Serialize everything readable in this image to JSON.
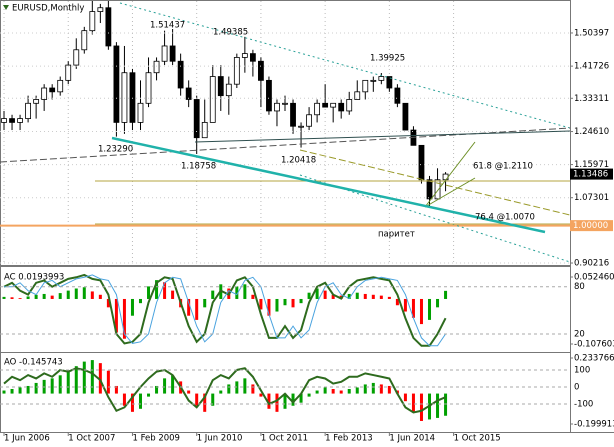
{
  "chart_data": [
    {
      "type": "candlestick",
      "title": "EURUSD,Monthly",
      "x": [
        "2006-05-01",
        "2006-07-01",
        "2006-09-01",
        "2006-11-01",
        "2007-01-01",
        "2007-03-01",
        "2007-05-01",
        "2007-07-01",
        "2007-09-01",
        "2007-11-01",
        "2008-01-01",
        "2008-03-01",
        "2008-05-01",
        "2008-07-01",
        "2008-09-01",
        "2008-11-01",
        "2009-01-01",
        "2009-03-01",
        "2009-05-01",
        "2009-07-01",
        "2009-09-01",
        "2009-11-01",
        "2010-01-01",
        "2010-03-01",
        "2010-05-01",
        "2010-07-01",
        "2010-09-01",
        "2010-11-01",
        "2011-01-01",
        "2011-03-01",
        "2011-05-01",
        "2011-07-01",
        "2011-09-01",
        "2011-11-01",
        "2012-01-01",
        "2012-03-01",
        "2012-05-01",
        "2012-07-01",
        "2012-09-01",
        "2012-11-01",
        "2013-01-01",
        "2013-03-01",
        "2013-05-01",
        "2013-07-01",
        "2013-09-01",
        "2013-11-01",
        "2014-01-01",
        "2014-03-01",
        "2014-05-01",
        "2014-07-01",
        "2014-09-01",
        "2014-11-01",
        "2015-01-01",
        "2015-03-01",
        "2015-05-01",
        "2015-07-01"
      ],
      "open": [
        1.27,
        1.28,
        1.27,
        1.28,
        1.32,
        1.33,
        1.36,
        1.35,
        1.38,
        1.42,
        1.46,
        1.51,
        1.56,
        1.57,
        1.47,
        1.27,
        1.4,
        1.27,
        1.32,
        1.4,
        1.43,
        1.47,
        1.43,
        1.36,
        1.33,
        1.23,
        1.27,
        1.39,
        1.34,
        1.37,
        1.44,
        1.45,
        1.43,
        1.38,
        1.3,
        1.32,
        1.32,
        1.26,
        1.26,
        1.29,
        1.32,
        1.31,
        1.32,
        1.3,
        1.33,
        1.35,
        1.38,
        1.38,
        1.39,
        1.36,
        1.32,
        1.25,
        1.21,
        1.12,
        1.07,
        1.12
      ],
      "high": [
        1.3,
        1.29,
        1.29,
        1.34,
        1.34,
        1.37,
        1.37,
        1.39,
        1.43,
        1.49,
        1.52,
        1.6,
        1.58,
        1.6,
        1.48,
        1.47,
        1.41,
        1.38,
        1.44,
        1.44,
        1.51,
        1.51437,
        1.45,
        1.38,
        1.34,
        1.33,
        1.42,
        1.42,
        1.39,
        1.45,
        1.49385,
        1.46,
        1.44,
        1.39,
        1.33,
        1.34,
        1.33,
        1.27,
        1.31,
        1.33,
        1.37,
        1.32,
        1.33,
        1.35,
        1.38,
        1.38,
        1.39,
        1.39925,
        1.39,
        1.37,
        1.32,
        1.26,
        1.21,
        1.13,
        1.15,
        1.14
      ],
      "low": [
        1.25,
        1.25,
        1.25,
        1.27,
        1.28,
        1.3,
        1.33,
        1.34,
        1.37,
        1.41,
        1.45,
        1.5,
        1.53,
        1.46,
        1.2329,
        1.24,
        1.25,
        1.25,
        1.31,
        1.38,
        1.42,
        1.42,
        1.34,
        1.31,
        1.18758,
        1.23,
        1.27,
        1.3,
        1.29,
        1.36,
        1.4,
        1.39,
        1.31,
        1.29,
        1.26,
        1.3,
        1.24,
        1.20418,
        1.25,
        1.27,
        1.31,
        1.27,
        1.28,
        1.29,
        1.33,
        1.33,
        1.35,
        1.37,
        1.35,
        1.31,
        1.25,
        1.21,
        1.11,
        1.05,
        1.07,
        1.09
      ],
      "close": [
        1.28,
        1.27,
        1.28,
        1.32,
        1.33,
        1.36,
        1.35,
        1.38,
        1.42,
        1.46,
        1.51,
        1.56,
        1.57,
        1.47,
        1.27,
        1.4,
        1.27,
        1.32,
        1.4,
        1.43,
        1.47,
        1.43,
        1.36,
        1.33,
        1.23,
        1.27,
        1.39,
        1.34,
        1.37,
        1.44,
        1.45,
        1.43,
        1.38,
        1.3,
        1.32,
        1.32,
        1.26,
        1.26,
        1.29,
        1.32,
        1.31,
        1.32,
        1.3,
        1.33,
        1.35,
        1.38,
        1.38,
        1.39,
        1.36,
        1.32,
        1.25,
        1.21,
        1.12,
        1.07,
        1.12,
        1.13486
      ],
      "up_color": "#ffffff",
      "down_color": "#000000",
      "xlim": [
        "2006-05-01",
        "2018-03-01"
      ],
      "xticks": [
        {
          "value": "2006-06-01",
          "label": "1 Jun 2006"
        },
        {
          "value": "2007-10-01",
          "label": "1 Oct 2007"
        },
        {
          "value": "2009-02-01",
          "label": "1 Feb 2009"
        },
        {
          "value": "2010-06-01",
          "label": "1 Jun 2010"
        },
        {
          "value": "2011-10-01",
          "label": "1 Oct 2011"
        },
        {
          "value": "2013-02-01",
          "label": "1 Feb 2013"
        },
        {
          "value": "2014-06-01",
          "label": "1 Jun 2014"
        },
        {
          "value": "2015-10-01",
          "label": "1 Oct 2015"
        }
      ],
      "ylim": [
        0.897,
        1.585
      ],
      "yticks": [
        1.50397,
        1.41726,
        1.33311,
        {
          "value": 1.2461,
          "label": "1.24610"
        },
        1.15971,
        1.07301,
        0.90216
      ],
      "grid": true,
      "price_lines": [
        {
          "value": 1,
          "label": "1.00000",
          "color": "#f4a460"
        }
      ],
      "last_price": 1.13486,
      "annotations": [
        "1.23290",
        "1.51437",
        "1.18758",
        "1.49385",
        "1.20418",
        "1.39925",
        "паритет",
        "61.8 @1.2110",
        "76.4 @1.0070"
      ]
    },
    {
      "type": "bar",
      "title": "AC 0.0193993",
      "values": [
        0.005,
        0.004,
        0.002,
        0.006,
        0.01,
        0.012,
        0.008,
        0.014,
        0.02,
        0.025,
        0.028,
        0.018,
        0.01,
        -0.02,
        -0.08,
        -0.095,
        -0.04,
        -0.01,
        0.03,
        0.045,
        0.04,
        0.02,
        -0.02,
        -0.04,
        -0.05,
        -0.02,
        0.02,
        0.035,
        0.025,
        0.03,
        0.035,
        0.01,
        -0.025,
        -0.04,
        -0.03,
        -0.015,
        -0.02,
        -0.01,
        0.015,
        0.025,
        0.02,
        0.01,
        0.008,
        0.012,
        0.015,
        0.012,
        0.01,
        0.008,
        0.005,
        -0.015,
        -0.03,
        -0.045,
        -0.06,
        -0.05,
        -0.02,
        0.0193993
      ],
      "up_color": "#00a000",
      "down_color": "#ff0000",
      "ylim": [
        -0.1267,
        0.074
      ],
      "yticks": [
        {
          "value": 0.05246,
          "label": "0.052460"
        },
        -0.107603
      ],
      "y2lim": [
        -2.9,
        103.8
      ],
      "y2ticks": [
        80,
        20
      ],
      "grid": true,
      "series": [
        {
          "color": "#2e6b1e",
          "values": [
            80,
            85,
            75,
            70,
            85,
            88,
            80,
            85,
            90,
            92,
            95,
            90,
            88,
            70,
            20,
            8,
            10,
            20,
            60,
            85,
            92,
            90,
            60,
            30,
            10,
            20,
            60,
            75,
            70,
            88,
            92,
            80,
            45,
            15,
            15,
            30,
            15,
            25,
            60,
            80,
            85,
            70,
            65,
            80,
            88,
            90,
            92,
            90,
            88,
            70,
            40,
            15,
            5,
            5,
            20,
            40
          ],
          "axis": "y2"
        },
        {
          "color": "#4aa3df",
          "values": [
            80,
            80,
            85,
            75,
            70,
            85,
            88,
            80,
            85,
            90,
            92,
            95,
            90,
            88,
            70,
            20,
            8,
            10,
            20,
            60,
            85,
            92,
            90,
            60,
            30,
            10,
            20,
            60,
            75,
            70,
            88,
            92,
            80,
            45,
            15,
            15,
            30,
            15,
            25,
            60,
            80,
            85,
            70,
            65,
            80,
            88,
            90,
            92,
            90,
            88,
            70,
            40,
            15,
            5,
            5,
            20
          ],
          "axis": "y2"
        }
      ]
    },
    {
      "type": "bar",
      "title": "AO -0.145743",
      "values": [
        0.02,
        0.03,
        0.04,
        0.05,
        0.07,
        0.09,
        0.1,
        0.12,
        0.15,
        0.18,
        0.21,
        0.22,
        0.2,
        0.15,
        0.05,
        -0.08,
        -0.12,
        -0.1,
        -0.02,
        0.05,
        0.1,
        0.12,
        0.08,
        0.02,
        -0.08,
        -0.12,
        -0.08,
        0.02,
        0.06,
        0.08,
        0.1,
        0.06,
        -0.02,
        -0.1,
        -0.12,
        -0.1,
        -0.08,
        -0.06,
        -0.02,
        0.02,
        0.04,
        0.03,
        0.02,
        0.03,
        0.04,
        0.06,
        0.07,
        0.06,
        0.05,
        0.02,
        -0.05,
        -0.12,
        -0.18,
        -0.17,
        -0.16,
        -0.145743
      ],
      "up_color": "#00a000",
      "down_color": "#ff0000",
      "ylim": [
        -0.2525,
        0.26
      ],
      "yticks": [
        0.233766,
        -0.199913
      ],
      "y2lim": [
        -265,
        194
      ],
      "y2ticks": [
        100,
        0,
        -100
      ],
      "grid": true,
      "series": [
        {
          "color": "#2e6b1e",
          "values": [
            20,
            60,
            40,
            70,
            50,
            80,
            60,
            100,
            90,
            110,
            100,
            80,
            40,
            -60,
            -140,
            -120,
            -60,
            0,
            50,
            90,
            100,
            70,
            0,
            -80,
            -120,
            -60,
            40,
            70,
            50,
            100,
            110,
            60,
            -20,
            -100,
            -80,
            -40,
            -90,
            -40,
            40,
            60,
            50,
            20,
            30,
            60,
            60,
            80,
            70,
            60,
            50,
            -40,
            -120,
            -150,
            -140,
            -110,
            -80,
            -60
          ],
          "axis": "y2"
        }
      ]
    }
  ]
}
